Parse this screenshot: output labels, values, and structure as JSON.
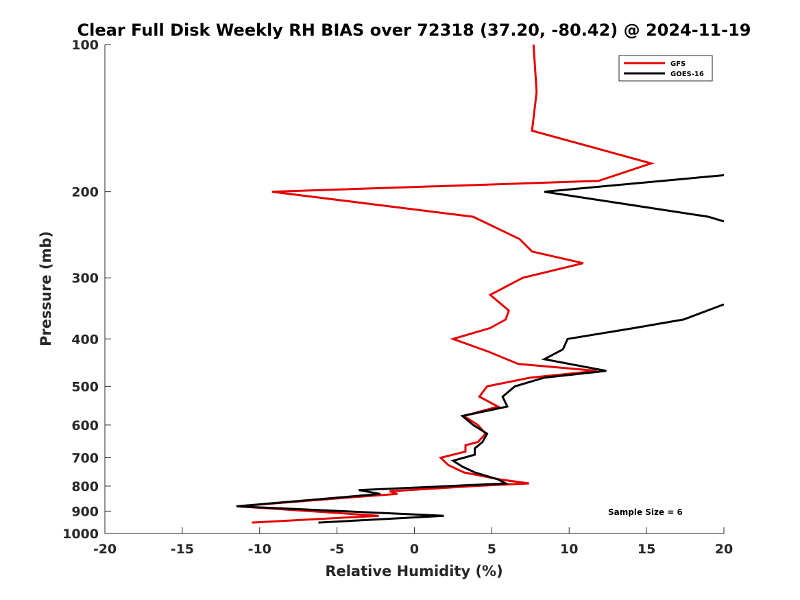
{
  "chart_data": {
    "type": "line",
    "title": "Clear Full Disk Weekly RH BIAS over 72318 (37.20, -80.42) @ 2024-11-19",
    "xlabel": "Relative Humidity (%)",
    "ylabel": "Pressure (mb)",
    "xlim": [
      -20,
      20
    ],
    "ylim": [
      100,
      1000
    ],
    "y_scale": "log",
    "y_reversed": true,
    "xticks": [
      -20,
      -15,
      -10,
      -5,
      0,
      5,
      10,
      15,
      20
    ],
    "xtick_labels": [
      "-20",
      "-15",
      "-10",
      "-5",
      "0",
      "5",
      "10",
      "15",
      "20"
    ],
    "yticks": [
      100,
      200,
      300,
      400,
      500,
      600,
      700,
      800,
      900,
      1000
    ],
    "ytick_labels": [
      "100",
      "200",
      "300",
      "400",
      "500",
      "600",
      "700",
      "800",
      "900",
      "1000"
    ],
    "grid": false,
    "legend_position": "top-right",
    "annotation": "Sample Size = 6",
    "series": [
      {
        "name": "GFS",
        "color": "#e50000",
        "points": [
          [
            7.7,
            100
          ],
          [
            7.9,
            125
          ],
          [
            7.6,
            150
          ],
          [
            15.3,
            175
          ],
          [
            11.9,
            190
          ],
          [
            -9.2,
            200
          ],
          [
            3.8,
            225
          ],
          [
            6.8,
            250
          ],
          [
            7.6,
            265
          ],
          [
            10.9,
            280
          ],
          [
            7.0,
            300
          ],
          [
            4.9,
            325
          ],
          [
            6.1,
            350
          ],
          [
            5.9,
            365
          ],
          [
            4.9,
            380
          ],
          [
            2.5,
            400
          ],
          [
            4.8,
            425
          ],
          [
            6.7,
            450
          ],
          [
            11.8,
            465
          ],
          [
            7.5,
            480
          ],
          [
            4.7,
            500
          ],
          [
            4.2,
            525
          ],
          [
            5.4,
            550
          ],
          [
            3.2,
            575
          ],
          [
            4.1,
            600
          ],
          [
            4.6,
            625
          ],
          [
            4.1,
            650
          ],
          [
            3.3,
            660
          ],
          [
            3.3,
            680
          ],
          [
            1.7,
            700
          ],
          [
            2.2,
            725
          ],
          [
            3.2,
            750
          ],
          [
            5.5,
            775
          ],
          [
            7.4,
            790
          ],
          [
            3.8,
            800
          ],
          [
            -1.6,
            820
          ],
          [
            -1.1,
            830
          ],
          [
            -5.5,
            850
          ],
          [
            -11.4,
            880
          ],
          [
            -2.3,
            920
          ],
          [
            -10.5,
            950
          ]
        ]
      },
      {
        "name": "GOES-16",
        "color": "#000000",
        "points": [
          [
            20.0,
            185
          ],
          [
            8.4,
            200
          ],
          [
            19.0,
            225
          ],
          [
            20.0,
            230
          ],
          [
            20.0,
            340
          ],
          [
            17.4,
            365
          ],
          [
            14.2,
            380
          ],
          [
            9.9,
            400
          ],
          [
            9.6,
            420
          ],
          [
            8.4,
            440
          ],
          [
            12.4,
            465
          ],
          [
            8.4,
            480
          ],
          [
            6.5,
            500
          ],
          [
            5.7,
            525
          ],
          [
            6.0,
            550
          ],
          [
            3.1,
            575
          ],
          [
            3.8,
            600
          ],
          [
            4.7,
            625
          ],
          [
            4.4,
            650
          ],
          [
            3.9,
            670
          ],
          [
            3.9,
            690
          ],
          [
            2.5,
            710
          ],
          [
            3.1,
            730
          ],
          [
            3.9,
            750
          ],
          [
            5.4,
            775
          ],
          [
            5.9,
            790
          ],
          [
            2.2,
            800
          ],
          [
            -3.6,
            815
          ],
          [
            -2.2,
            830
          ],
          [
            -6.0,
            850
          ],
          [
            -11.5,
            880
          ],
          [
            1.9,
            920
          ],
          [
            -6.2,
            950
          ]
        ],
        "segments_break_after_index": 3
      }
    ]
  }
}
